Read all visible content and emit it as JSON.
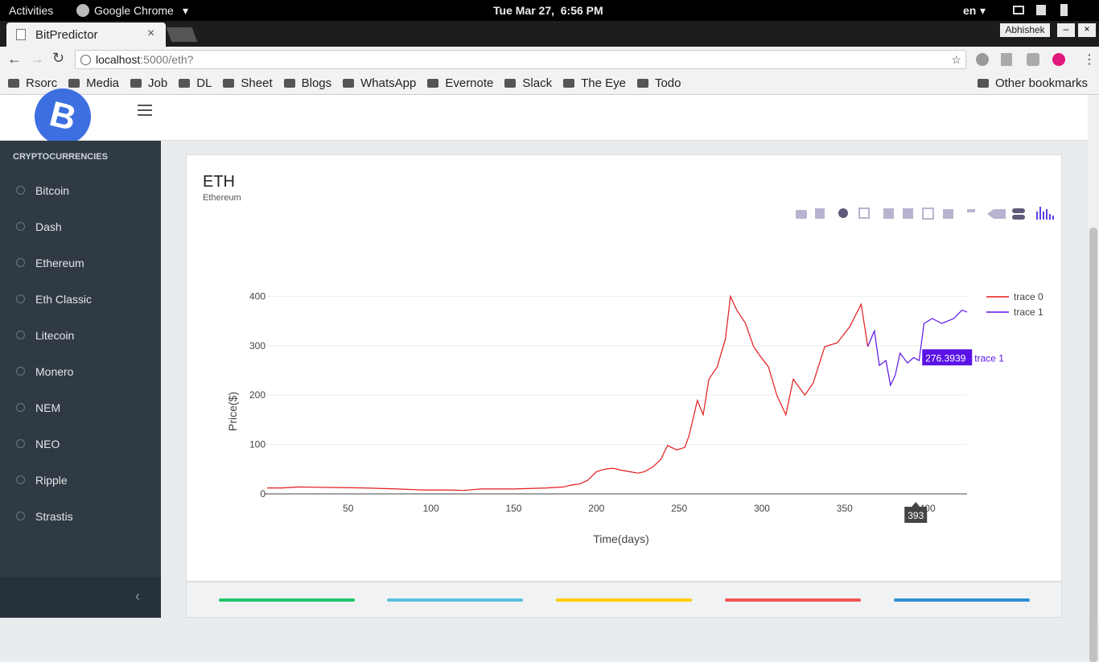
{
  "topbar": {
    "activities": "Activities",
    "app": "Google Chrome",
    "clock": "Tue Mar 27,  6:56 PM",
    "lang": "en"
  },
  "browser": {
    "tab": "BitPredictor",
    "user": "Abhishek",
    "url_host": "localhost",
    "url_path": ":5000/eth?",
    "bookmarks": [
      "Rsorc",
      "Media",
      "Job",
      "DL",
      "Sheet",
      "Blogs",
      "WhatsApp",
      "Evernote",
      "Slack",
      "The Eye",
      "Todo"
    ],
    "other_bookmarks": "Other bookmarks"
  },
  "sidebar": {
    "heading": "CRYPTOCURRENCIES",
    "items": [
      "Bitcoin",
      "Dash",
      "Ethereum",
      "Eth Classic",
      "Litecoin",
      "Monero",
      "NEM",
      "NEO",
      "Ripple",
      "Strastis"
    ]
  },
  "card": {
    "title": "ETH",
    "subtitle": "Ethereum"
  },
  "chart_data": {
    "type": "line",
    "xlabel": "Time(days)",
    "ylabel": "Price($)",
    "xlim": [
      1,
      424
    ],
    "ylim": [
      0,
      425
    ],
    "xticks": [
      50,
      100,
      150,
      200,
      250,
      300,
      350,
      400
    ],
    "yticks": [
      0,
      100,
      200,
      300,
      400
    ],
    "grid": true,
    "legend": "top-right",
    "series": [
      {
        "name": "trace 0",
        "color": "#e41a1c",
        "x": [
          1,
          10,
          20,
          40,
          60,
          80,
          95,
          110,
          120,
          130,
          150,
          170,
          180,
          185,
          190,
          195,
          200,
          205,
          210,
          215,
          220,
          225,
          229,
          234,
          239,
          243,
          248.5,
          253.4,
          256,
          261,
          264.5,
          268,
          273,
          278,
          281,
          285,
          290,
          295,
          298.5,
          304,
          309,
          314.5,
          319,
          326,
          331,
          338,
          345.6,
          353,
          360,
          364
        ],
        "values": [
          12,
          12,
          14,
          13,
          12,
          10,
          8,
          8,
          7,
          10,
          10,
          12,
          14,
          18,
          20,
          28,
          45,
          50,
          52,
          48,
          45,
          42,
          45,
          54,
          70,
          98,
          89,
          94,
          118,
          189,
          160,
          232,
          257,
          314,
          400,
          371,
          346,
          298,
          281,
          257,
          200,
          160,
          232,
          200,
          224,
          298,
          306,
          338,
          384,
          298
        ]
      },
      {
        "name": "trace 1",
        "color": "#5a12e6",
        "x": [
          364,
          368,
          371,
          375,
          377.7,
          380.6,
          383.5,
          388,
          391.7,
          395,
          398,
          403,
          408.7,
          416,
          421,
          424
        ],
        "values": [
          298,
          330,
          260,
          270,
          220,
          240,
          285,
          265,
          276,
          270,
          345,
          355,
          345,
          355,
          372,
          368
        ]
      }
    ],
    "hover": {
      "x": 393,
      "y": 276.3939,
      "series": "trace 1"
    }
  }
}
